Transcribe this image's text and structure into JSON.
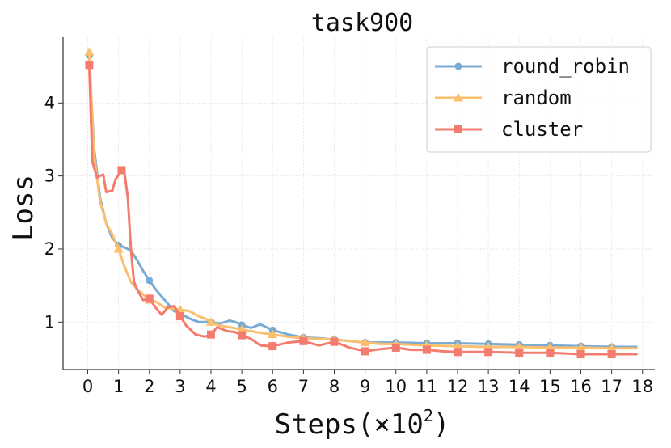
{
  "chart_data": {
    "type": "line",
    "title": "task900",
    "xlabel": "Steps(×10",
    "xlabel_exponent": "2",
    "xlabel_suffix": ")",
    "ylabel": "Loss",
    "xlim": [
      -0.8,
      18.4
    ],
    "ylim": [
      0.35,
      4.9
    ],
    "xticks": [
      "0",
      "1",
      "2",
      "3",
      "4",
      "5",
      "6",
      "7",
      "8",
      "9",
      "10",
      "11",
      "12",
      "13",
      "14",
      "15",
      "16",
      "17",
      "18"
    ],
    "yticks": [
      "1",
      "2",
      "3",
      "4"
    ],
    "grid": true,
    "legend_placement": "top-right",
    "series": [
      {
        "name": "round_robin",
        "color": "#7aabd4",
        "marker": "circle",
        "x": [
          0.05,
          0.2,
          0.4,
          0.6,
          0.8,
          1.0,
          1.2,
          1.4,
          1.6,
          1.8,
          2.0,
          2.2,
          2.5,
          2.8,
          3.0,
          3.3,
          3.6,
          3.8,
          4.0,
          4.3,
          4.6,
          4.8,
          5.0,
          5.3,
          5.6,
          5.8,
          6.0,
          6.5,
          7.0,
          7.5,
          8.0,
          8.5,
          9.0,
          9.5,
          10.0,
          11.0,
          12.0,
          13.0,
          14.0,
          15.0,
          16.0,
          17.0,
          17.8
        ],
        "y": [
          4.65,
          3.4,
          2.7,
          2.35,
          2.15,
          2.05,
          2.02,
          1.98,
          1.85,
          1.7,
          1.57,
          1.45,
          1.3,
          1.15,
          1.12,
          1.05,
          1.0,
          1.0,
          1.0,
          0.98,
          1.02,
          1.0,
          0.96,
          0.92,
          0.97,
          0.93,
          0.89,
          0.83,
          0.79,
          0.78,
          0.76,
          0.74,
          0.72,
          0.72,
          0.72,
          0.71,
          0.71,
          0.7,
          0.69,
          0.68,
          0.67,
          0.66,
          0.66
        ],
        "marker_x": [
          0.05,
          1.0,
          2.0,
          3.0,
          4.0,
          5.0,
          6.0,
          7.0,
          8.0,
          9.0,
          10.0,
          11.0,
          12.0,
          13.0,
          14.0,
          15.0,
          16.0,
          17.0
        ],
        "marker_y": [
          4.65,
          2.05,
          1.57,
          1.12,
          1.0,
          0.96,
          0.89,
          0.79,
          0.76,
          0.72,
          0.72,
          0.71,
          0.71,
          0.7,
          0.69,
          0.68,
          0.67,
          0.66
        ]
      },
      {
        "name": "random",
        "color": "#fbbf6e",
        "marker": "triangle",
        "x": [
          0.05,
          0.2,
          0.4,
          0.6,
          0.8,
          1.0,
          1.2,
          1.4,
          1.6,
          1.8,
          2.0,
          2.2,
          2.5,
          2.8,
          3.0,
          3.3,
          3.6,
          3.8,
          4.0,
          4.3,
          4.6,
          5.0,
          5.5,
          6.0,
          6.5,
          7.0,
          7.5,
          8.0,
          8.5,
          9.0,
          9.5,
          10.0,
          11.0,
          12.0,
          13.0,
          14.0,
          15.0,
          16.0,
          17.0,
          17.8
        ],
        "y": [
          4.7,
          3.3,
          2.65,
          2.35,
          2.2,
          2.0,
          1.75,
          1.55,
          1.45,
          1.38,
          1.3,
          1.28,
          1.2,
          1.18,
          1.17,
          1.15,
          1.08,
          1.05,
          1.0,
          0.95,
          0.93,
          0.9,
          0.86,
          0.83,
          0.8,
          0.78,
          0.77,
          0.76,
          0.74,
          0.72,
          0.7,
          0.7,
          0.68,
          0.67,
          0.66,
          0.66,
          0.65,
          0.65,
          0.64,
          0.64
        ],
        "marker_x": [
          0.05,
          1.0,
          2.0,
          3.0,
          4.0,
          5.0,
          6.0,
          7.0,
          8.0,
          9.0,
          10.0,
          11.0,
          12.0,
          13.0,
          14.0,
          15.0,
          16.0,
          17.0
        ],
        "marker_y": [
          4.7,
          2.0,
          1.3,
          1.17,
          1.0,
          0.9,
          0.83,
          0.78,
          0.76,
          0.72,
          0.7,
          0.68,
          0.67,
          0.66,
          0.66,
          0.65,
          0.65,
          0.64
        ]
      },
      {
        "name": "cluster",
        "color": "#f47c6e",
        "marker": "square",
        "x": [
          0.05,
          0.15,
          0.3,
          0.5,
          0.6,
          0.8,
          0.9,
          1.1,
          1.2,
          1.3,
          1.4,
          1.5,
          1.6,
          1.8,
          2.0,
          2.2,
          2.4,
          2.6,
          2.8,
          3.0,
          3.2,
          3.5,
          3.8,
          4.0,
          4.2,
          4.5,
          4.8,
          5.0,
          5.3,
          5.6,
          6.0,
          6.5,
          7.0,
          7.5,
          8.0,
          8.5,
          9.0,
          9.5,
          10.0,
          10.5,
          11.0,
          11.5,
          12.0,
          13.0,
          14.0,
          15.0,
          15.5,
          16.0,
          16.5,
          17.0,
          17.8
        ],
        "y": [
          4.52,
          3.2,
          2.98,
          3.02,
          2.78,
          2.8,
          2.95,
          3.08,
          3.02,
          2.7,
          2.0,
          1.55,
          1.45,
          1.3,
          1.32,
          1.2,
          1.1,
          1.2,
          1.22,
          1.08,
          0.95,
          0.83,
          0.8,
          0.83,
          0.93,
          0.88,
          0.86,
          0.82,
          0.77,
          0.68,
          0.67,
          0.72,
          0.74,
          0.68,
          0.73,
          0.65,
          0.6,
          0.63,
          0.65,
          0.62,
          0.62,
          0.6,
          0.59,
          0.59,
          0.58,
          0.58,
          0.57,
          0.56,
          0.56,
          0.56,
          0.56
        ],
        "marker_x": [
          0.05,
          1.1,
          2.0,
          3.0,
          4.0,
          5.0,
          6.0,
          7.0,
          8.0,
          9.0,
          10.0,
          11.0,
          12.0,
          13.0,
          14.0,
          15.0,
          16.0,
          17.0
        ],
        "marker_y": [
          4.52,
          3.08,
          1.32,
          1.08,
          0.83,
          0.82,
          0.67,
          0.74,
          0.73,
          0.6,
          0.65,
          0.62,
          0.59,
          0.59,
          0.58,
          0.58,
          0.56,
          0.56
        ]
      }
    ]
  }
}
